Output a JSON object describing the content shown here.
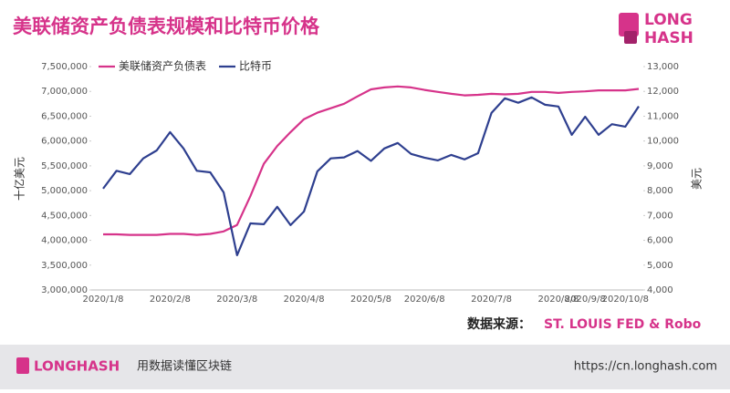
{
  "chart_data": {
    "type": "line",
    "title": "美联储资产负债表规模和比特币价格",
    "ylabel": "十亿美元",
    "y2label": "美元",
    "categories": [
      "2020/1/8",
      null,
      null,
      null,
      null,
      "2020/2/8",
      null,
      null,
      null,
      null,
      "2020/3/8",
      null,
      null,
      null,
      null,
      "2020/4/8",
      null,
      null,
      null,
      null,
      "2020/5/8",
      null,
      null,
      null,
      "2020/6/8",
      null,
      null,
      null,
      null,
      "2020/7/8",
      null,
      null,
      null,
      null,
      "2020/8/8",
      null,
      "2020/9/8",
      null,
      null,
      "2020/10/8",
      null
    ],
    "series": [
      {
        "name": "美联储资产负债表",
        "color": "#d6338a",
        "axis": "y",
        "values": [
          4120000,
          4120000,
          4110000,
          4110000,
          4110000,
          4130000,
          4130000,
          4110000,
          4130000,
          4180000,
          4310000,
          4890000,
          5540000,
          5900000,
          6180000,
          6440000,
          6570000,
          6660000,
          6750000,
          6900000,
          7040000,
          7080000,
          7100000,
          7080000,
          7030000,
          6990000,
          6950000,
          6920000,
          6930000,
          6950000,
          6940000,
          6950000,
          6990000,
          6990000,
          6970000,
          6990000,
          7000000,
          7020000,
          7020000,
          7020000,
          7050000
        ]
      },
      {
        "name": "比特币",
        "color": "#2e3f8f",
        "axis": "y2",
        "values": [
          8080,
          8800,
          8670,
          9300,
          9620,
          10360,
          9700,
          8800,
          8740,
          7930,
          5400,
          6680,
          6650,
          7350,
          6610,
          7160,
          8780,
          9300,
          9340,
          9600,
          9200,
          9700,
          9920,
          9480,
          9330,
          9220,
          9440,
          9260,
          9510,
          11130,
          11720,
          11540,
          11760,
          11460,
          11390,
          10250,
          10980,
          10250,
          10680,
          10580,
          11400
        ]
      }
    ],
    "ylim": [
      3000000,
      7500000
    ],
    "yticks": [
      {
        "value": 3000000,
        "label": "3,000,000"
      },
      {
        "value": 3500000,
        "label": "3,500,000"
      },
      {
        "value": 4000000,
        "label": "4,000,000"
      },
      {
        "value": 4500000,
        "label": "4,500,000"
      },
      {
        "value": 5000000,
        "label": "5,000,000"
      },
      {
        "value": 5500000,
        "label": "5,500,000"
      },
      {
        "value": 6000000,
        "label": "6,000,000"
      },
      {
        "value": 6500000,
        "label": "6,500,000"
      },
      {
        "value": 7000000,
        "label": "7,000,000"
      },
      {
        "value": 7500000,
        "label": "7,500,000"
      }
    ],
    "y2lim": [
      4000,
      13000
    ],
    "y2ticks": [
      {
        "value": 4000,
        "label": "4,000"
      },
      {
        "value": 5000,
        "label": "5,000"
      },
      {
        "value": 6000,
        "label": "6,000"
      },
      {
        "value": 7000,
        "label": "7,000"
      },
      {
        "value": 8000,
        "label": "8,000"
      },
      {
        "value": 9000,
        "label": "9,000"
      },
      {
        "value": 10000,
        "label": "10,000"
      },
      {
        "value": 11000,
        "label": "11,000"
      },
      {
        "value": 12000,
        "label": "12,000"
      },
      {
        "value": 13000,
        "label": "13,000"
      }
    ],
    "grid": false,
    "legend": "top-left"
  },
  "source_label": "数据来源：",
  "source": "ST. LOUIS FED & Robo",
  "logo": {
    "line1": "LONG",
    "line2": "HASH"
  },
  "footer": {
    "brand": "LONGHASH",
    "tagline": "用数据读懂区块链",
    "url": "https://cn.longhash.com"
  }
}
